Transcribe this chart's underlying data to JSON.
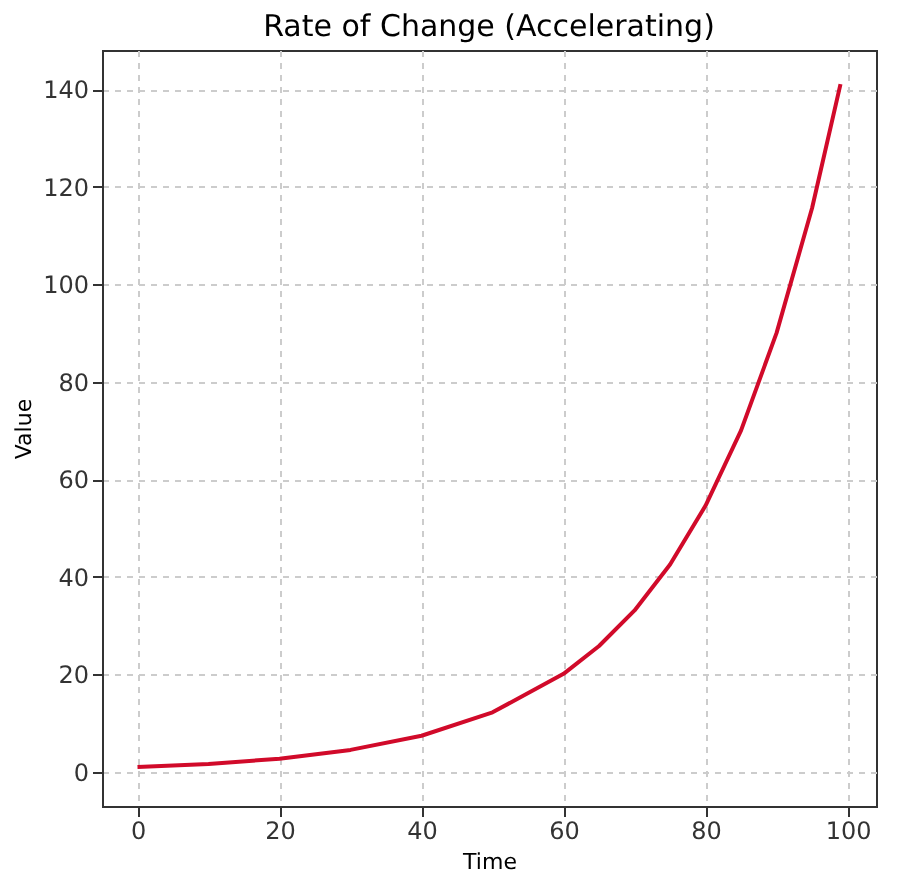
{
  "chart_data": {
    "type": "line",
    "title": "Rate of Change (Accelerating)",
    "xlabel": "Time",
    "ylabel": "Value",
    "series": [
      {
        "color": "#d10a2a",
        "x": [
          0,
          10,
          20,
          30,
          40,
          50,
          60,
          65,
          70,
          75,
          80,
          85,
          90,
          95,
          99
        ],
        "values": [
          1,
          1.6,
          2.7,
          4.5,
          7.4,
          12.2,
          20.1,
          25.8,
          33.1,
          42.5,
          54.6,
          70,
          90,
          115.6,
          141
        ]
      }
    ],
    "xlim": [
      -5,
      104
    ],
    "ylim": [
      -7,
      148
    ],
    "xticks": [
      0,
      20,
      40,
      60,
      80,
      100
    ],
    "yticks": [
      0,
      20,
      40,
      60,
      80,
      100,
      120,
      140
    ],
    "grid": true,
    "line_style": "solid",
    "marker": "none"
  }
}
